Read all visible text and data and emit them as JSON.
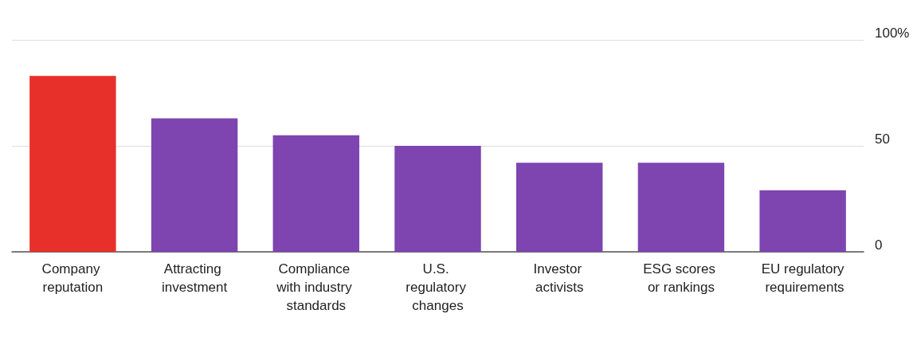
{
  "chart_data": {
    "type": "bar",
    "categories": [
      "Company reputation",
      "Attracting investment",
      "Compliance with industry standards",
      "U.S. regulatory changes",
      "Investor activists",
      "ESG scores or rankings",
      "EU regulatory requirements"
    ],
    "values": [
      83,
      63,
      55,
      50,
      42,
      42,
      29
    ],
    "colors": [
      "#e8302a",
      "#7e44b0",
      "#7e44b0",
      "#7e44b0",
      "#7e44b0",
      "#7e44b0",
      "#7e44b0"
    ],
    "ylim": [
      0,
      100
    ],
    "yticks": [
      0,
      50,
      {
        "value": 100,
        "label": "100%"
      }
    ],
    "grid": "y"
  }
}
